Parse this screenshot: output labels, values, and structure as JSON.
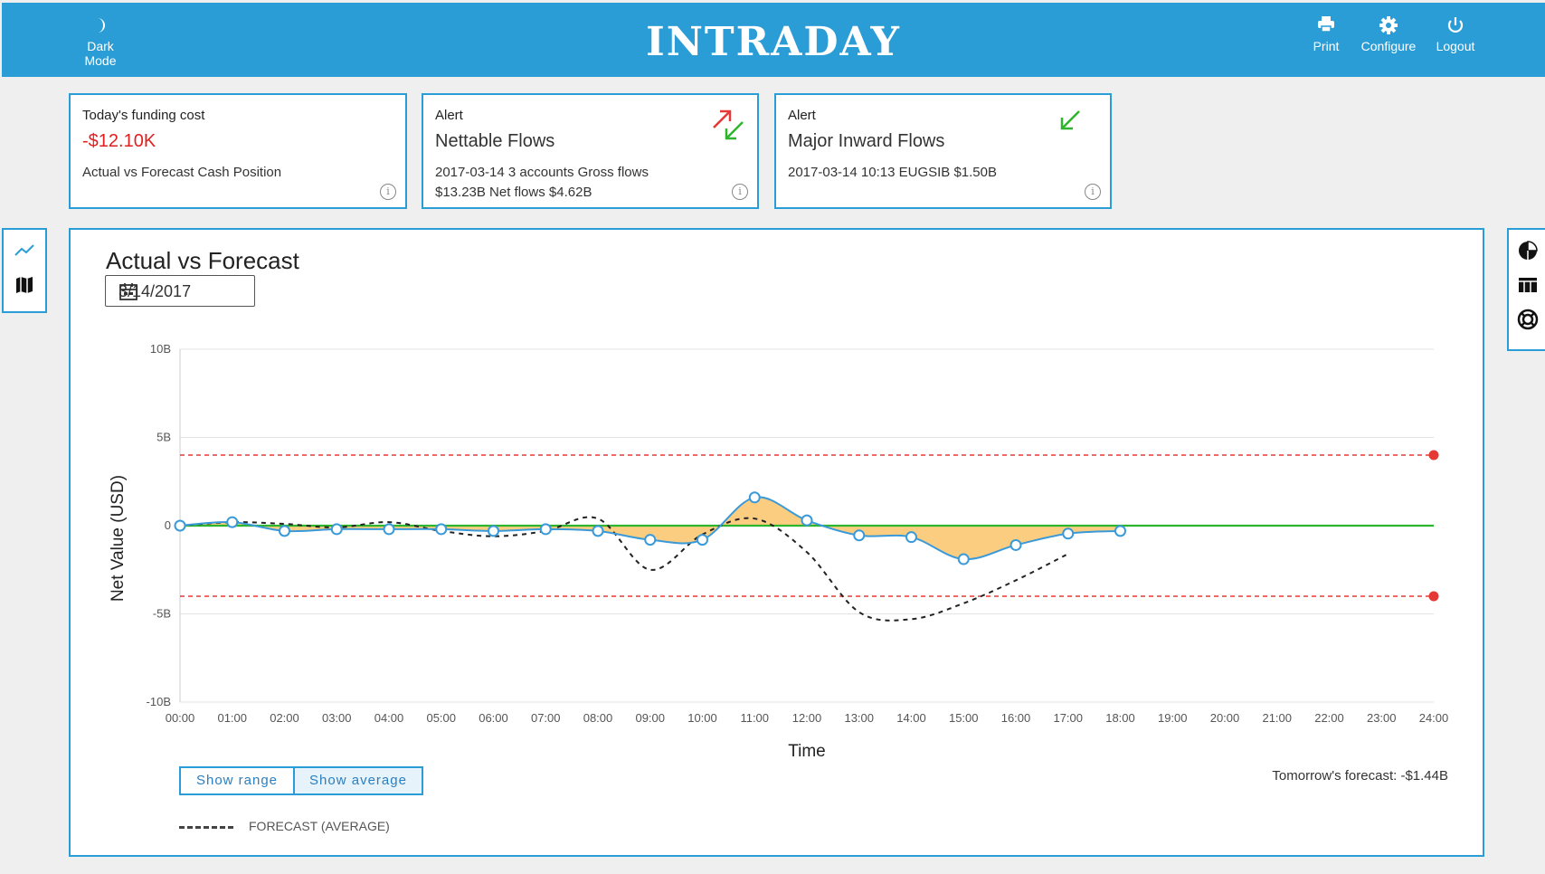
{
  "header": {
    "title": "INTRADAY",
    "dark_mode_label": "Dark Mode",
    "print_label": "Print",
    "configure_label": "Configure",
    "logout_label": "Logout",
    "color": "#2b9dd6"
  },
  "cards": {
    "funding": {
      "label": "Today's funding cost",
      "value": "-$12.10K",
      "description": "Actual vs Forecast Cash Position"
    },
    "nettable": {
      "label": "Alert",
      "title": "Nettable Flows",
      "line1": "2017-03-14 3 accounts Gross flows",
      "line2": "$13.23B Net flows $4.62B"
    },
    "inward": {
      "label": "Alert",
      "title": "Major Inward Flows",
      "line1": "2017-03-14 10:13 EUGSIB $1.50B"
    }
  },
  "panel": {
    "title": "Actual vs Forecast",
    "date_value": "3/14/2017",
    "show_range_label": "Show range",
    "show_average_label": "Show average",
    "tomorrow_forecast": "Tomorrow's forecast: -$1.44B",
    "legend_forecast": "FORECAST (AVERAGE)"
  },
  "chart_data": {
    "type": "line",
    "xlabel": "Time",
    "ylabel": "Net Value (USD)",
    "x_ticks": [
      "00:00",
      "01:00",
      "02:00",
      "03:00",
      "04:00",
      "05:00",
      "06:00",
      "07:00",
      "08:00",
      "09:00",
      "10:00",
      "11:00",
      "12:00",
      "13:00",
      "14:00",
      "15:00",
      "16:00",
      "17:00",
      "18:00",
      "19:00",
      "20:00",
      "21:00",
      "22:00",
      "23:00",
      "24:00"
    ],
    "y_ticks": [
      "10B",
      "5B",
      "0",
      "-5B",
      "-10B"
    ],
    "ylim": [
      -10,
      10
    ],
    "xlim": [
      0,
      24
    ],
    "grid": true,
    "series": [
      {
        "name": "",
        "style": "solid-markers",
        "color": "#3a9ad9",
        "x": [
          0,
          1,
          2,
          3,
          4,
          5,
          6,
          7,
          8,
          9,
          10,
          11,
          12,
          13,
          14,
          15,
          16,
          17,
          18
        ],
        "y": [
          0,
          0.2,
          -0.3,
          -0.2,
          -0.2,
          -0.2,
          -0.3,
          -0.2,
          -0.3,
          -0.8,
          -0.8,
          1.6,
          0.3,
          -0.55,
          -0.65,
          -1.9,
          -1.1,
          -0.45,
          -0.3
        ]
      },
      {
        "name": "FORECAST (AVERAGE)",
        "style": "dashed",
        "color": "#222222",
        "x": [
          0,
          1,
          2,
          3,
          4,
          5,
          6,
          7,
          8,
          9,
          10,
          11,
          12,
          13,
          14,
          15,
          16,
          17
        ],
        "y": [
          0,
          0.2,
          0.1,
          -0.1,
          0.2,
          -0.3,
          -0.6,
          -0.3,
          0.4,
          -2.5,
          -0.5,
          0.4,
          -1.5,
          -4.9,
          -5.3,
          -4.4,
          -3.1,
          -1.6
        ]
      }
    ],
    "baseline": {
      "y": 0,
      "color": "#2db52d"
    },
    "thresholds": [
      {
        "y": 4,
        "color": "#e53935"
      },
      {
        "y": -4,
        "color": "#e53935"
      }
    ],
    "fill_color": "#f9c46a"
  }
}
